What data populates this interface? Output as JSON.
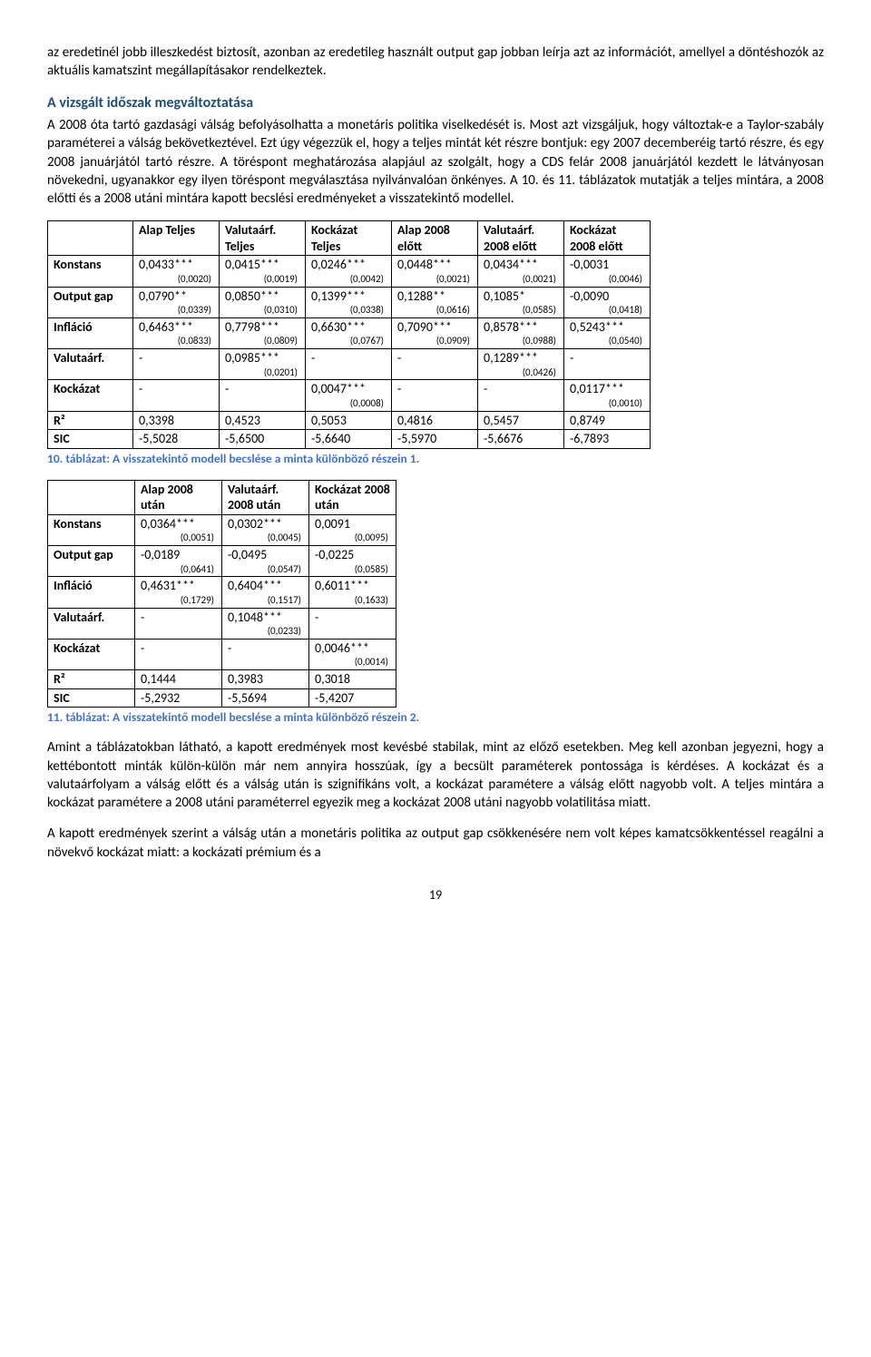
{
  "para_intro": "az eredetinél jobb illeszkedést biztosít, azonban az eredetileg használt output gap jobban leírja azt az információt, amellyel a döntéshozók az aktuális kamatszint megállapításakor rendelkeztek.",
  "section_heading": "A vizsgált időszak megváltoztatása",
  "para_section": "A 2008 óta tartó gazdasági válság befolyásolhatta a monetáris politika viselkedését is. Most azt vizsgáljuk, hogy változtak-e a Taylor-szabály paraméterei a válság bekövetkeztével. Ezt úgy végezzük el, hogy a teljes mintát két részre bontjuk: egy 2007 decemberéig tartó részre, és egy 2008 januárjától tartó részre. A töréspont meghatározása alapjául az szolgált, hogy a CDS felár 2008 januárjától kezdett le látványosan növekedni, ugyanakkor egy ilyen töréspont megválasztása nyilvánvalóan önkényes. A 10. és 11. táblázatok mutatják a teljes mintára, a 2008 előtti és a 2008 utáni mintára kapott becslési eredményeket a visszatekintő modellel.",
  "table1": {
    "headers": [
      "",
      "Alap Teljes",
      "Valutaárf. Teljes",
      "Kockázat Teljes",
      "Alap 2008 előtt",
      "Valutaárf. 2008 előtt",
      "Kockázat 2008 előtt"
    ],
    "rows": [
      {
        "label": "Konstans",
        "cells": [
          {
            "v": "0,0433***",
            "se": "(0,0020)"
          },
          {
            "v": "0,0415***",
            "se": "(0,0019)"
          },
          {
            "v": "0,0246***",
            "se": "(0,0042)"
          },
          {
            "v": "0,0448***",
            "se": "(0,0021)"
          },
          {
            "v": "0,0434***",
            "se": "(0,0021)"
          },
          {
            "v": "-0,0031",
            "se": "(0,0046)"
          }
        ]
      },
      {
        "label": "Output gap",
        "cells": [
          {
            "v": "0,0790**",
            "se": "(0,0339)"
          },
          {
            "v": "0,0850***",
            "se": "(0,0310)"
          },
          {
            "v": "0,1399***",
            "se": "(0,0338)"
          },
          {
            "v": "0,1288**",
            "se": "(0,0616)"
          },
          {
            "v": "0,1085*",
            "se": "(0,0585)"
          },
          {
            "v": "-0,0090",
            "se": "(0,0418)"
          }
        ]
      },
      {
        "label": "Infláció",
        "cells": [
          {
            "v": "0,6463***",
            "se": "(0,0833)"
          },
          {
            "v": "0,7798***",
            "se": "(0,0809)"
          },
          {
            "v": "0,6630***",
            "se": "(0,0767)"
          },
          {
            "v": "0,7090***",
            "se": "(0,0909)"
          },
          {
            "v": "0,8578***",
            "se": "(0,0988)"
          },
          {
            "v": "0,5243***",
            "se": "(0,0540)"
          }
        ]
      },
      {
        "label": "Valutaárf.",
        "cells": [
          {
            "v": "-",
            "se": ""
          },
          {
            "v": "0,0985***",
            "se": "(0,0201)"
          },
          {
            "v": "-",
            "se": ""
          },
          {
            "v": "-",
            "se": ""
          },
          {
            "v": "0,1289***",
            "se": "(0,0426)"
          },
          {
            "v": "-",
            "se": ""
          }
        ]
      },
      {
        "label": "Kockázat",
        "cells": [
          {
            "v": "-",
            "se": ""
          },
          {
            "v": "-",
            "se": ""
          },
          {
            "v": "0,0047***",
            "se": "(0,0008)"
          },
          {
            "v": "-",
            "se": ""
          },
          {
            "v": "-",
            "se": ""
          },
          {
            "v": "0,0117***",
            "se": "(0,0010)"
          }
        ]
      },
      {
        "label": "R²",
        "cells": [
          {
            "v": "0,3398",
            "se": ""
          },
          {
            "v": "0,4523",
            "se": ""
          },
          {
            "v": "0,5053",
            "se": ""
          },
          {
            "v": "0,4816",
            "se": ""
          },
          {
            "v": "0,5457",
            "se": ""
          },
          {
            "v": "0,8749",
            "se": ""
          }
        ]
      },
      {
        "label": "SIC",
        "cells": [
          {
            "v": "-5,5028",
            "se": ""
          },
          {
            "v": "-5,6500",
            "se": ""
          },
          {
            "v": "-5,6640",
            "se": ""
          },
          {
            "v": "-5,5970",
            "se": ""
          },
          {
            "v": "-5,6676",
            "se": ""
          },
          {
            "v": "-6,7893",
            "se": ""
          }
        ]
      }
    ],
    "caption": "10. táblázat: A visszatekintő modell becslése a minta különböző részein 1."
  },
  "table2": {
    "headers": [
      "",
      "Alap 2008 után",
      "Valutaárf. 2008 után",
      "Kockázat 2008 után"
    ],
    "rows": [
      {
        "label": "Konstans",
        "cells": [
          {
            "v": "0,0364***",
            "se": "(0,0051)"
          },
          {
            "v": "0,0302***",
            "se": "(0,0045)"
          },
          {
            "v": "0,0091",
            "se": "(0,0095)"
          }
        ]
      },
      {
        "label": "Output gap",
        "cells": [
          {
            "v": "-0,0189",
            "se": "(0,0641)"
          },
          {
            "v": "-0,0495",
            "se": "(0,0547)"
          },
          {
            "v": "-0,0225",
            "se": "(0,0585)"
          }
        ]
      },
      {
        "label": "Infláció",
        "cells": [
          {
            "v": "0,4631***",
            "se": "(0,1729)"
          },
          {
            "v": "0,6404***",
            "se": "(0,1517)"
          },
          {
            "v": "0,6011***",
            "se": "(0,1633)"
          }
        ]
      },
      {
        "label": "Valutaárf.",
        "cells": [
          {
            "v": "-",
            "se": ""
          },
          {
            "v": "0,1048***",
            "se": "(0,0233)"
          },
          {
            "v": "-",
            "se": ""
          }
        ]
      },
      {
        "label": "Kockázat",
        "cells": [
          {
            "v": "-",
            "se": ""
          },
          {
            "v": "-",
            "se": ""
          },
          {
            "v": "0,0046***",
            "se": "(0,0014)"
          }
        ]
      },
      {
        "label": "R²",
        "cells": [
          {
            "v": "0,1444",
            "se": ""
          },
          {
            "v": "0,3983",
            "se": ""
          },
          {
            "v": "0,3018",
            "se": ""
          }
        ]
      },
      {
        "label": "SIC",
        "cells": [
          {
            "v": "-5,2932",
            "se": ""
          },
          {
            "v": "-5,5694",
            "se": ""
          },
          {
            "v": "-5,4207",
            "se": ""
          }
        ]
      }
    ],
    "caption": "11. táblázat: A visszatekintő modell becslése a minta különböző részein 2."
  },
  "para_after1": "Amint a táblázatokban látható, a kapott eredmények most kevésbé stabilak, mint az előző esetekben. Meg kell azonban jegyezni, hogy a kettébontott minták külön-külön már nem annyira hosszúak, így a becsült paraméterek pontossága is kérdéses. A kockázat és a valutaárfolyam a válság előtt és a válság után is szignifikáns volt, a kockázat paramétere a válság előtt nagyobb volt. A teljes mintára a kockázat paramétere a 2008 utáni paraméterrel egyezik meg a kockázat 2008 utáni nagyobb volatilitása miatt.",
  "para_after2": "A kapott eredmények szerint a válság után a monetáris politika az output gap csökkenésére nem volt képes kamatcsökkentéssel reagálni a növekvő kockázat miatt: a kockázati prémium és a",
  "page_number": "19"
}
